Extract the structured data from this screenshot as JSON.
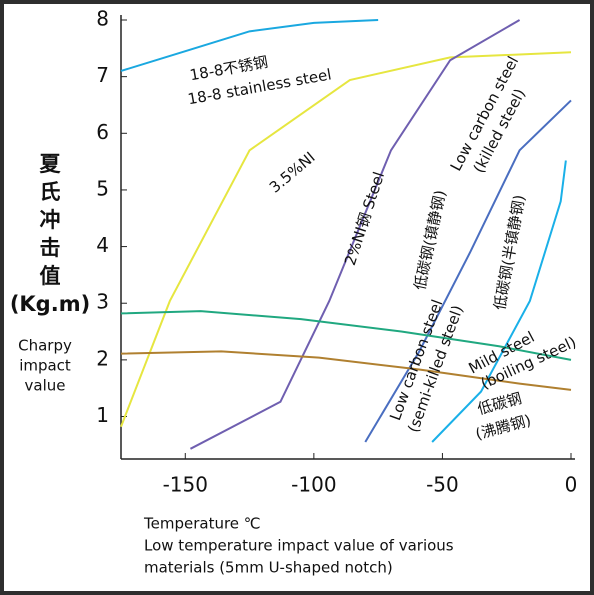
{
  "chart_data": {
    "type": "line",
    "y_label_lines": [
      "夏",
      "氏",
      "冲",
      "击",
      "值",
      "(Kg.m)"
    ],
    "y_label_en_lines": [
      "Charpy",
      "impact",
      "value"
    ],
    "x_label_lines": [
      "Temperature ℃",
      "Low temperature impact value of various",
      "materials (5mm U-shaped notch)"
    ],
    "xlim": [
      -175,
      0
    ],
    "ylim": [
      0.25,
      8
    ],
    "xticks": [
      -150,
      -100,
      -50,
      0
    ],
    "yticks": [
      1,
      2,
      3,
      4,
      5,
      6,
      7,
      8
    ],
    "series": [
      {
        "color": "#1aa8e0",
        "x": [
          -175,
          -150,
          -125,
          -100,
          -75
        ],
        "values": [
          7.1,
          7.45,
          7.8,
          7.95,
          8
        ]
      },
      {
        "color": "#e6e640",
        "x": [
          -175,
          -156,
          -125,
          -86,
          -47,
          0
        ],
        "values": [
          0.82,
          3.04,
          5.7,
          6.94,
          7.34,
          7.43
        ]
      },
      {
        "color": "#6f5fb0",
        "x": [
          -148,
          -113,
          -94,
          -70,
          -47,
          -20
        ],
        "values": [
          0.43,
          1.26,
          3.04,
          5.7,
          7.29,
          8
        ]
      },
      {
        "color": "#4a6ec0",
        "x": [
          -80,
          -59,
          -39,
          -20,
          0
        ],
        "values": [
          0.55,
          2.15,
          3.92,
          5.7,
          6.58
        ]
      },
      {
        "color": "#1ab0e8",
        "x": [
          -54,
          -35,
          -16,
          -4,
          -2
        ],
        "values": [
          0.55,
          1.44,
          3.04,
          4.8,
          5.52
        ]
      },
      {
        "color": "#20a880",
        "x": [
          -175,
          -144,
          -105,
          -66,
          -28,
          0
        ],
        "values": [
          2.82,
          2.86,
          2.72,
          2.5,
          2.24,
          2.0
        ]
      },
      {
        "color": "#b08030",
        "x": [
          -175,
          -136,
          -98,
          -59,
          -20,
          0
        ],
        "values": [
          2.11,
          2.15,
          2.04,
          1.83,
          1.58,
          1.47
        ]
      }
    ],
    "annotations": [
      "18-8不锈钢",
      "18-8 stainless steel",
      "3.5%NI",
      "2%NI钢    Steel",
      "低碳钢(镇静钢)",
      "Low carbon steel",
      "(killed steel)",
      "低碳钢(半镇静钢)",
      "Low carbon steel",
      "(semi-killed steel)",
      "Mild steel",
      "(boiling steel)",
      "低碳钢",
      "(沸腾钢)"
    ]
  }
}
